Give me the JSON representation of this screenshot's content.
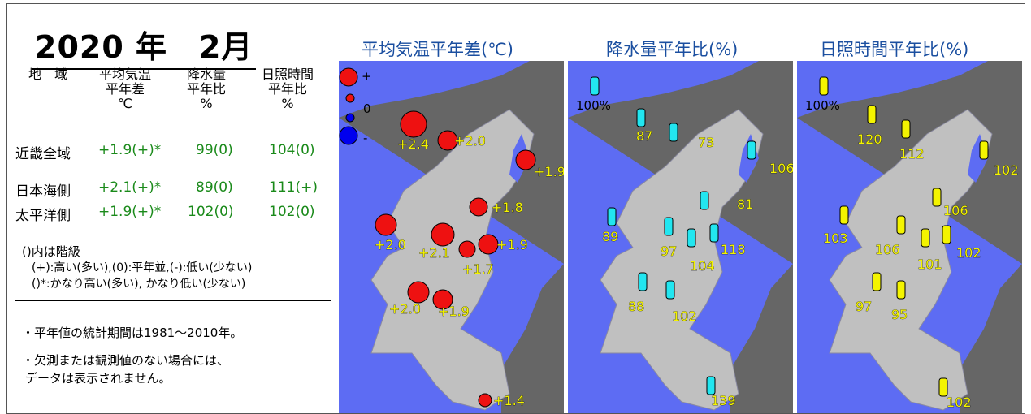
{
  "title": "2020 年　2月",
  "table": {
    "headers": [
      [
        "地　域"
      ],
      [
        "平均気温",
        "平年差",
        "℃"
      ],
      [
        "降水量",
        "平年比",
        "%"
      ],
      [
        "日照時間",
        "平年比",
        "%"
      ]
    ],
    "rows": [
      {
        "region": "近畿全域",
        "temp": "+1.9(+)*",
        "precip": "99(0)",
        "sun": "104(0)"
      },
      {
        "region": "日本海側",
        "temp": "+2.1(+)*",
        "precip": "89(0)",
        "sun": "111(+)"
      },
      {
        "region": "太平洋側",
        "temp": "+1.9(+)*",
        "precip": "102(0)",
        "sun": "102(0)"
      }
    ]
  },
  "notes": {
    "class_title": "()内は階級",
    "class_line1": "(+):高い(多い),(0):平年並,(-):低い(少ない)",
    "class_line2": "()*:かなり高い(多い), かなり低い(少ない)",
    "period": "・平年値の統計期間は1981～2010年。",
    "missing_line1": "・欠測または観測値のない場合には、",
    "missing_line2": "データは表示されません。"
  },
  "panels": {
    "temp_title": "平均気温平年差(℃)",
    "precip_title": "降水量平年比(%)",
    "sun_title": "日照時間平年比(%)"
  },
  "legend": {
    "temp_plus": "+",
    "temp_zero": "0",
    "temp_minus": "-",
    "precip_ref": "100%",
    "sun_ref": "100%"
  },
  "colors": {
    "sea": "#5d6cf3",
    "land_outer": "#666666",
    "land_region": "#c0c0c0",
    "temp_marker": "#ee1111",
    "precip_marker": "#22e6f0",
    "sun_marker": "#f4f400",
    "title_blue": "#1b4fa0",
    "value_green": "#1a8a1a"
  },
  "map_data": {
    "temperature": [
      {
        "station": "s1",
        "value": "+2.4",
        "anomaly": 2.4
      },
      {
        "station": "s2",
        "value": "+2.0",
        "anomaly": 2.0
      },
      {
        "station": "s3",
        "value": "+1.9",
        "anomaly": 1.9
      },
      {
        "station": "s4",
        "value": "+1.8",
        "anomaly": 1.8
      },
      {
        "station": "s5",
        "value": "+2.0",
        "anomaly": 2.0
      },
      {
        "station": "s6",
        "value": "+2.1",
        "anomaly": 2.1
      },
      {
        "station": "s7",
        "value": "+1.7",
        "anomaly": 1.7
      },
      {
        "station": "s8",
        "value": "+1.9",
        "anomaly": 1.9
      },
      {
        "station": "s9",
        "value": "+2.0",
        "anomaly": 2.0
      },
      {
        "station": "s10",
        "value": "+1.9",
        "anomaly": 1.9
      },
      {
        "station": "s11",
        "value": "+1.4",
        "anomaly": 1.4
      }
    ],
    "precipitation": [
      {
        "station": "s1",
        "value": "87"
      },
      {
        "station": "s2",
        "value": "73"
      },
      {
        "station": "s3",
        "value": "106"
      },
      {
        "station": "s4",
        "value": "81"
      },
      {
        "station": "s5",
        "value": "89"
      },
      {
        "station": "s6",
        "value": "97"
      },
      {
        "station": "s7",
        "value": "118"
      },
      {
        "station": "s8",
        "value": "104"
      },
      {
        "station": "s9",
        "value": "88"
      },
      {
        "station": "s10",
        "value": "102"
      },
      {
        "station": "s11",
        "value": "139"
      }
    ],
    "sunshine": [
      {
        "station": "s1",
        "value": "120"
      },
      {
        "station": "s2",
        "value": "112"
      },
      {
        "station": "s3",
        "value": "102"
      },
      {
        "station": "s4",
        "value": "106"
      },
      {
        "station": "s5",
        "value": "103"
      },
      {
        "station": "s6",
        "value": "106"
      },
      {
        "station": "s7",
        "value": "101"
      },
      {
        "station": "s8",
        "value": "102"
      },
      {
        "station": "s9",
        "value": "97"
      },
      {
        "station": "s10",
        "value": "95"
      },
      {
        "station": "s11",
        "value": "102"
      }
    ]
  }
}
